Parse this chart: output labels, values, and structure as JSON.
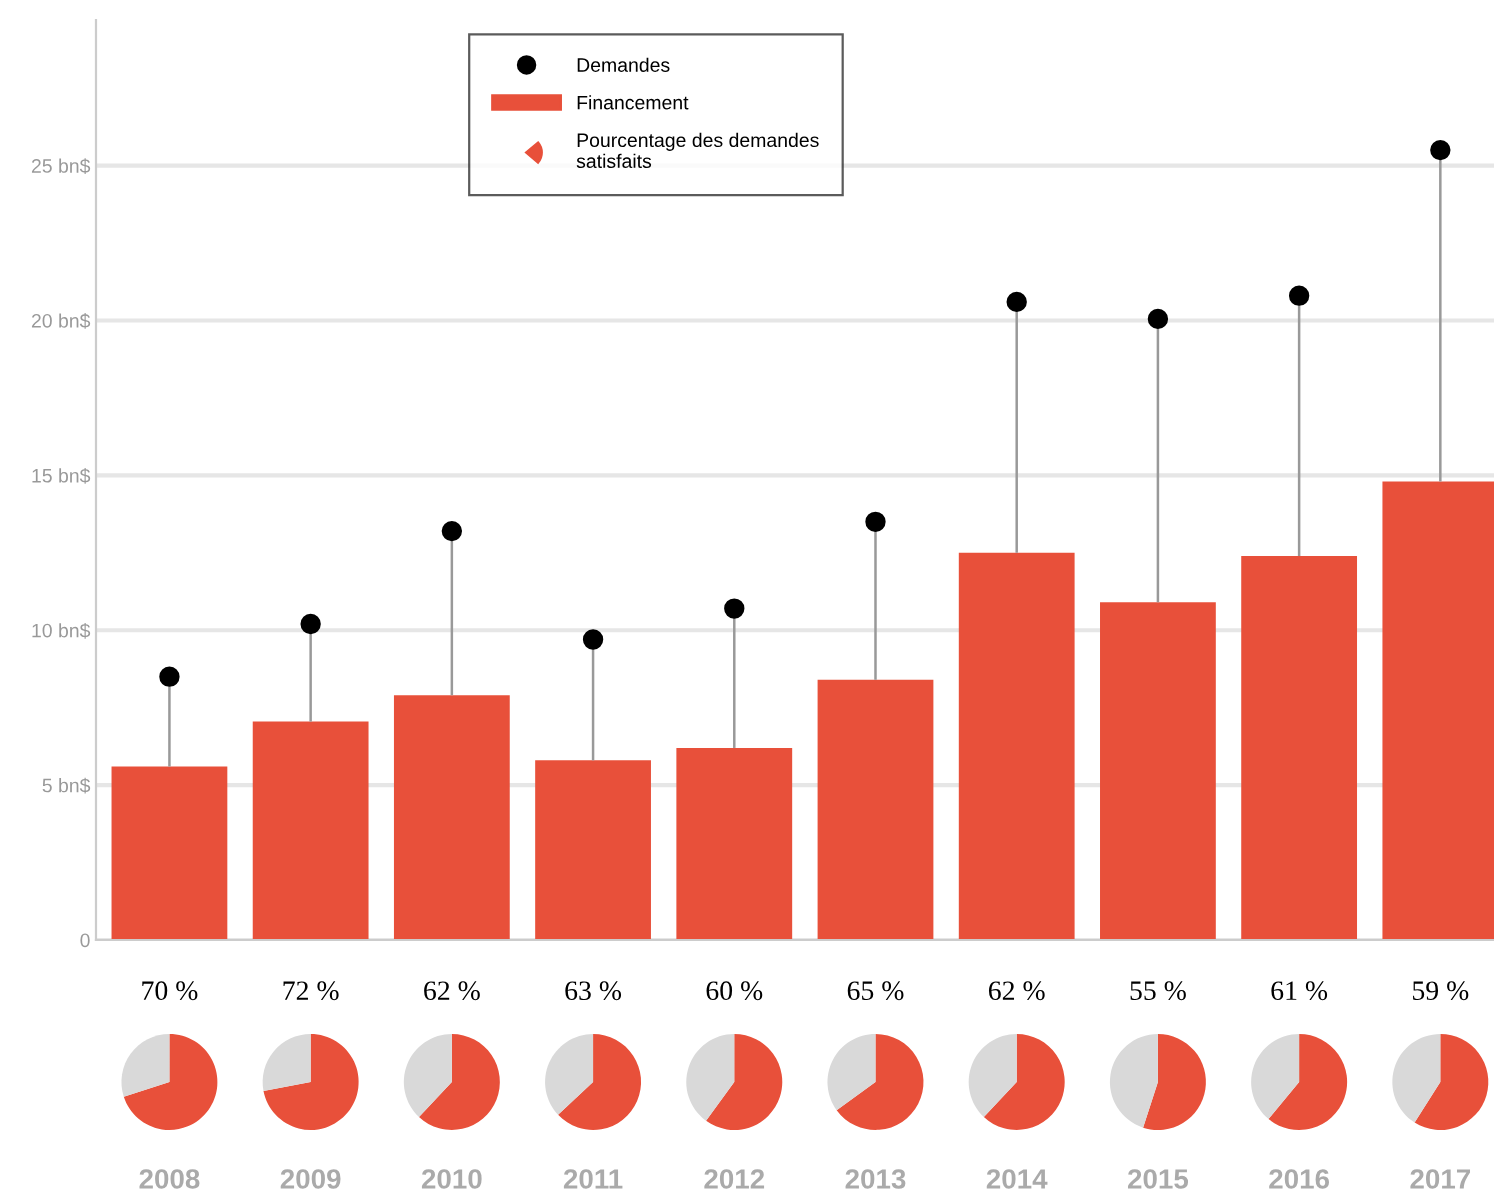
{
  "chart_data": [
    {
      "type": "bar",
      "categories": [
        null,
        null,
        null,
        null,
        null,
        null,
        null,
        null,
        null,
        null
      ],
      "series": [
        {
          "name": "Demandes",
          "type": "scatter",
          "color": "#000000",
          "values": [
            8.5,
            10.2,
            13.2,
            9.7,
            10.7,
            13.5,
            20.6,
            20.05,
            20.8,
            25.5
          ],
          "errors": [
            [
              5.6,
              8.5
            ],
            [
              7.05,
              10.2
            ],
            [
              7.9,
              13.2
            ],
            [
              5.8,
              9.7
            ],
            [
              6.2,
              10.7
            ],
            [
              8.4,
              13.5
            ],
            [
              12.5,
              20.6
            ],
            [
              10.9,
              20.05
            ],
            [
              12.4,
              20.8
            ],
            [
              14.8,
              25.5
            ]
          ]
        },
        {
          "name": "Financement",
          "type": "bar",
          "color": "#e8503a",
          "values": [
            5.6,
            7.05,
            7.9,
            5.8,
            6.2,
            8.4,
            12.5,
            10.9,
            12.4,
            14.8
          ]
        }
      ],
      "ylim": [
        0,
        29.7
      ],
      "yticks": [
        0,
        {
          "value": 5,
          "label": "5 bn$"
        },
        {
          "value": 10,
          "label": "10 bn$"
        },
        {
          "value": 15,
          "label": "15 bn$"
        },
        {
          "value": 20,
          "label": "20 bn$"
        },
        {
          "value": 25,
          "label": "25 bn$"
        }
      ],
      "grid": "y",
      "legend": "top",
      "marker": "circle",
      "annotations": [
        "Pourcentage des demandes\nsatisfaits"
      ]
    },
    {
      "type": "pie",
      "title": "70 %",
      "xlabel": "2008",
      "categories": [
        null,
        null
      ],
      "values": [
        70,
        30
      ],
      "colors": [
        "#e8503a",
        "#d9d9d9"
      ]
    },
    {
      "type": "pie",
      "title": "72 %",
      "xlabel": "2009",
      "categories": [
        null,
        null
      ],
      "values": [
        72,
        28
      ],
      "colors": [
        "#e8503a",
        "#d9d9d9"
      ]
    },
    {
      "type": "pie",
      "title": "62 %",
      "xlabel": "2010",
      "categories": [
        null,
        null
      ],
      "values": [
        62,
        38
      ],
      "colors": [
        "#e8503a",
        "#d9d9d9"
      ]
    },
    {
      "type": "pie",
      "title": "63 %",
      "xlabel": "2011",
      "categories": [
        null,
        null
      ],
      "values": [
        63,
        37
      ],
      "colors": [
        "#e8503a",
        "#d9d9d9"
      ]
    },
    {
      "type": "pie",
      "title": "60 %",
      "xlabel": "2012",
      "categories": [
        null,
        null
      ],
      "values": [
        60,
        40
      ],
      "colors": [
        "#e8503a",
        "#d9d9d9"
      ]
    },
    {
      "type": "pie",
      "title": "65 %",
      "xlabel": "2013",
      "categories": [
        null,
        null
      ],
      "values": [
        65,
        35
      ],
      "colors": [
        "#e8503a",
        "#d9d9d9"
      ]
    },
    {
      "type": "pie",
      "title": "62 %",
      "xlabel": "2014",
      "categories": [
        null,
        null
      ],
      "values": [
        62,
        38
      ],
      "colors": [
        "#e8503a",
        "#d9d9d9"
      ]
    },
    {
      "type": "pie",
      "title": "55 %",
      "xlabel": "2015",
      "categories": [
        null,
        null
      ],
      "values": [
        55,
        45
      ],
      "colors": [
        "#e8503a",
        "#d9d9d9"
      ]
    },
    {
      "type": "pie",
      "title": "61 %",
      "xlabel": "2016",
      "categories": [
        null,
        null
      ],
      "values": [
        61,
        39
      ],
      "colors": [
        "#e8503a",
        "#d9d9d9"
      ]
    },
    {
      "type": "pie",
      "title": "59 %",
      "xlabel": "2017",
      "categories": [
        null,
        null
      ],
      "values": [
        59,
        41
      ],
      "colors": [
        "#e8503a",
        "#d9d9d9"
      ]
    }
  ]
}
